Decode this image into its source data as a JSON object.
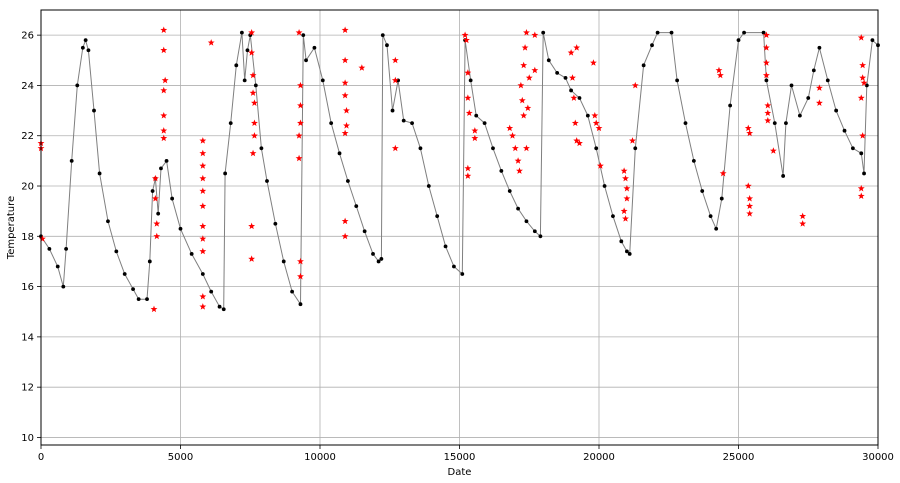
{
  "chart_data": {
    "type": "scatter",
    "title": "",
    "xlabel": "Date",
    "ylabel": "Temperature",
    "xlim": [
      0,
      30000
    ],
    "ylim": [
      9.7,
      27.0
    ],
    "x_ticks": [
      0,
      5000,
      10000,
      15000,
      20000,
      25000,
      30000
    ],
    "x_tick_labels": [
      "0",
      "5000",
      "10000",
      "15000",
      "20000",
      "25000",
      "30000"
    ],
    "y_ticks": [
      10,
      12,
      14,
      16,
      18,
      20,
      22,
      24,
      26
    ],
    "y_tick_labels": [
      "10",
      "12",
      "14",
      "16",
      "18",
      "20",
      "22",
      "24",
      "26"
    ],
    "grid": true,
    "legend": "none",
    "colors": {
      "trace": "#000000",
      "line": "#7f7f7f",
      "outlier": "#ff0000",
      "grid": "#b0b0b0"
    },
    "series": [
      {
        "marker": "dot-line",
        "points": [
          [
            0,
            18.0
          ],
          [
            300,
            17.5
          ],
          [
            600,
            16.8
          ],
          [
            800,
            16.0
          ],
          [
            900,
            17.5
          ],
          [
            1100,
            21.0
          ],
          [
            1300,
            24.0
          ],
          [
            1500,
            25.5
          ],
          [
            1600,
            25.8
          ],
          [
            1700,
            25.4
          ],
          [
            1900,
            23.0
          ],
          [
            2100,
            20.5
          ],
          [
            2400,
            18.6
          ],
          [
            2700,
            17.4
          ],
          [
            3000,
            16.5
          ],
          [
            3300,
            15.9
          ],
          [
            3500,
            15.5
          ],
          [
            3800,
            15.5
          ],
          [
            3900,
            17.0
          ],
          [
            4000,
            19.8
          ],
          [
            4100,
            20.3
          ],
          [
            4200,
            18.9
          ],
          [
            4300,
            20.7
          ],
          [
            4500,
            21.0
          ],
          [
            4700,
            19.5
          ],
          [
            5000,
            18.3
          ],
          [
            5400,
            17.3
          ],
          [
            5800,
            16.5
          ],
          [
            6100,
            15.8
          ],
          [
            6400,
            15.2
          ],
          [
            6550,
            15.1
          ],
          [
            6600,
            20.5
          ],
          [
            6800,
            22.5
          ],
          [
            7000,
            24.8
          ],
          [
            7200,
            26.1
          ],
          [
            7300,
            24.2
          ],
          [
            7400,
            25.4
          ],
          [
            7500,
            26.0
          ],
          [
            7700,
            24.0
          ],
          [
            7900,
            21.5
          ],
          [
            8100,
            20.2
          ],
          [
            8400,
            18.5
          ],
          [
            8700,
            17.0
          ],
          [
            9000,
            15.8
          ],
          [
            9300,
            15.3
          ],
          [
            9400,
            26.0
          ],
          [
            9500,
            25.0
          ],
          [
            9800,
            25.5
          ],
          [
            10100,
            24.2
          ],
          [
            10400,
            22.5
          ],
          [
            10700,
            21.3
          ],
          [
            11000,
            20.2
          ],
          [
            11300,
            19.2
          ],
          [
            11600,
            18.2
          ],
          [
            11900,
            17.3
          ],
          [
            12100,
            17.0
          ],
          [
            12200,
            17.1
          ],
          [
            12250,
            26.0
          ],
          [
            12400,
            25.6
          ],
          [
            12600,
            23.0
          ],
          [
            12800,
            24.2
          ],
          [
            13000,
            22.6
          ],
          [
            13300,
            22.5
          ],
          [
            13600,
            21.5
          ],
          [
            13900,
            20.0
          ],
          [
            14200,
            18.8
          ],
          [
            14500,
            17.6
          ],
          [
            14800,
            16.8
          ],
          [
            15100,
            16.5
          ],
          [
            15200,
            25.8
          ],
          [
            15400,
            24.2
          ],
          [
            15600,
            22.8
          ],
          [
            15900,
            22.5
          ],
          [
            16200,
            21.5
          ],
          [
            16500,
            20.6
          ],
          [
            16800,
            19.8
          ],
          [
            17100,
            19.1
          ],
          [
            17400,
            18.6
          ],
          [
            17700,
            18.2
          ],
          [
            17900,
            18.0
          ],
          [
            18000,
            26.1
          ],
          [
            18200,
            25.0
          ],
          [
            18500,
            24.5
          ],
          [
            18800,
            24.3
          ],
          [
            19000,
            23.8
          ],
          [
            19300,
            23.5
          ],
          [
            19600,
            22.8
          ],
          [
            19900,
            21.5
          ],
          [
            20200,
            20.0
          ],
          [
            20500,
            18.8
          ],
          [
            20800,
            17.8
          ],
          [
            21000,
            17.4
          ],
          [
            21100,
            17.3
          ],
          [
            21300,
            21.5
          ],
          [
            21600,
            24.8
          ],
          [
            21900,
            25.6
          ],
          [
            22100,
            26.1
          ],
          [
            22600,
            26.1
          ],
          [
            22800,
            24.2
          ],
          [
            23100,
            22.5
          ],
          [
            23400,
            21.0
          ],
          [
            23700,
            19.8
          ],
          [
            24000,
            18.8
          ],
          [
            24200,
            18.3
          ],
          [
            24400,
            19.5
          ],
          [
            24700,
            23.2
          ],
          [
            25000,
            25.8
          ],
          [
            25200,
            26.1
          ],
          [
            25900,
            26.1
          ],
          [
            26000,
            24.2
          ],
          [
            26300,
            22.5
          ],
          [
            26600,
            20.4
          ],
          [
            26700,
            22.5
          ],
          [
            26900,
            24.0
          ],
          [
            27200,
            22.8
          ],
          [
            27500,
            23.5
          ],
          [
            27700,
            24.6
          ],
          [
            27900,
            25.5
          ],
          [
            28200,
            24.2
          ],
          [
            28500,
            23.0
          ],
          [
            28800,
            22.2
          ],
          [
            29100,
            21.5
          ],
          [
            29400,
            21.3
          ],
          [
            29500,
            20.5
          ],
          [
            29600,
            24.0
          ],
          [
            29800,
            25.8
          ],
          [
            30000,
            25.6
          ]
        ]
      },
      {
        "marker": "star",
        "points": [
          [
            0,
            21.7
          ],
          [
            0,
            21.5
          ],
          [
            50,
            17.9
          ],
          [
            4050,
            15.1
          ],
          [
            4100,
            20.3
          ],
          [
            4100,
            19.5
          ],
          [
            4150,
            18.5
          ],
          [
            4150,
            18.0
          ],
          [
            4400,
            26.2
          ],
          [
            4400,
            25.4
          ],
          [
            4400,
            23.8
          ],
          [
            4400,
            22.8
          ],
          [
            4400,
            22.2
          ],
          [
            4400,
            21.9
          ],
          [
            4450,
            24.2
          ],
          [
            5800,
            21.8
          ],
          [
            5800,
            21.3
          ],
          [
            5800,
            20.8
          ],
          [
            5800,
            20.3
          ],
          [
            5800,
            19.8
          ],
          [
            5800,
            19.2
          ],
          [
            5800,
            18.4
          ],
          [
            5800,
            17.9
          ],
          [
            5800,
            17.4
          ],
          [
            5800,
            15.6
          ],
          [
            5800,
            15.2
          ],
          [
            6100,
            25.7
          ],
          [
            7550,
            26.1
          ],
          [
            7550,
            25.3
          ],
          [
            7600,
            24.4
          ],
          [
            7600,
            23.7
          ],
          [
            7650,
            23.3
          ],
          [
            7650,
            22.5
          ],
          [
            7650,
            22.0
          ],
          [
            7600,
            21.3
          ],
          [
            7550,
            18.4
          ],
          [
            7550,
            17.1
          ],
          [
            9250,
            26.1
          ],
          [
            9300,
            24.0
          ],
          [
            9300,
            23.2
          ],
          [
            9300,
            22.5
          ],
          [
            9250,
            22.0
          ],
          [
            9250,
            21.1
          ],
          [
            9300,
            17.0
          ],
          [
            9300,
            16.4
          ],
          [
            10900,
            26.2
          ],
          [
            10900,
            25.0
          ],
          [
            10900,
            24.1
          ],
          [
            10900,
            23.6
          ],
          [
            10950,
            23.0
          ],
          [
            10950,
            22.4
          ],
          [
            10900,
            22.1
          ],
          [
            10900,
            18.6
          ],
          [
            10900,
            18.0
          ],
          [
            11500,
            24.7
          ],
          [
            12700,
            25.0
          ],
          [
            12700,
            24.2
          ],
          [
            12700,
            21.5
          ],
          [
            15200,
            26.0
          ],
          [
            15250,
            25.8
          ],
          [
            15300,
            24.5
          ],
          [
            15300,
            23.5
          ],
          [
            15350,
            22.9
          ],
          [
            15300,
            20.7
          ],
          [
            15300,
            20.4
          ],
          [
            15550,
            22.2
          ],
          [
            15550,
            21.9
          ],
          [
            16800,
            22.3
          ],
          [
            16900,
            22.0
          ],
          [
            17000,
            21.5
          ],
          [
            17100,
            21.0
          ],
          [
            17150,
            20.6
          ],
          [
            17200,
            24.0
          ],
          [
            17250,
            23.4
          ],
          [
            17300,
            24.8
          ],
          [
            17300,
            22.8
          ],
          [
            17350,
            25.5
          ],
          [
            17400,
            26.1
          ],
          [
            17400,
            21.5
          ],
          [
            17450,
            23.1
          ],
          [
            17500,
            24.3
          ],
          [
            17700,
            24.6
          ],
          [
            17700,
            26.0
          ],
          [
            19000,
            25.3
          ],
          [
            19050,
            24.3
          ],
          [
            19100,
            23.5
          ],
          [
            19150,
            22.5
          ],
          [
            19200,
            21.8
          ],
          [
            19200,
            25.5
          ],
          [
            19300,
            21.7
          ],
          [
            19800,
            24.9
          ],
          [
            19850,
            22.8
          ],
          [
            19900,
            22.5
          ],
          [
            20000,
            22.3
          ],
          [
            20050,
            20.8
          ],
          [
            20900,
            20.6
          ],
          [
            20950,
            20.3
          ],
          [
            21000,
            19.9
          ],
          [
            21000,
            19.5
          ],
          [
            20900,
            19.0
          ],
          [
            20950,
            18.7
          ],
          [
            21200,
            21.8
          ],
          [
            21300,
            24.0
          ],
          [
            24300,
            24.6
          ],
          [
            24350,
            24.4
          ],
          [
            24450,
            20.5
          ],
          [
            25350,
            22.3
          ],
          [
            25400,
            22.1
          ],
          [
            25350,
            20.0
          ],
          [
            25400,
            19.5
          ],
          [
            25400,
            19.2
          ],
          [
            25400,
            18.9
          ],
          [
            26000,
            26.0
          ],
          [
            26000,
            25.5
          ],
          [
            26000,
            24.9
          ],
          [
            26000,
            24.4
          ],
          [
            26050,
            23.2
          ],
          [
            26050,
            22.9
          ],
          [
            26050,
            22.6
          ],
          [
            26250,
            21.4
          ],
          [
            27300,
            18.8
          ],
          [
            27300,
            18.5
          ],
          [
            27900,
            23.9
          ],
          [
            27900,
            23.3
          ],
          [
            29400,
            25.9
          ],
          [
            29450,
            24.8
          ],
          [
            29450,
            24.3
          ],
          [
            29500,
            24.1
          ],
          [
            29400,
            23.5
          ],
          [
            29450,
            22.0
          ],
          [
            29400,
            19.9
          ],
          [
            29400,
            19.6
          ]
        ]
      }
    ]
  }
}
